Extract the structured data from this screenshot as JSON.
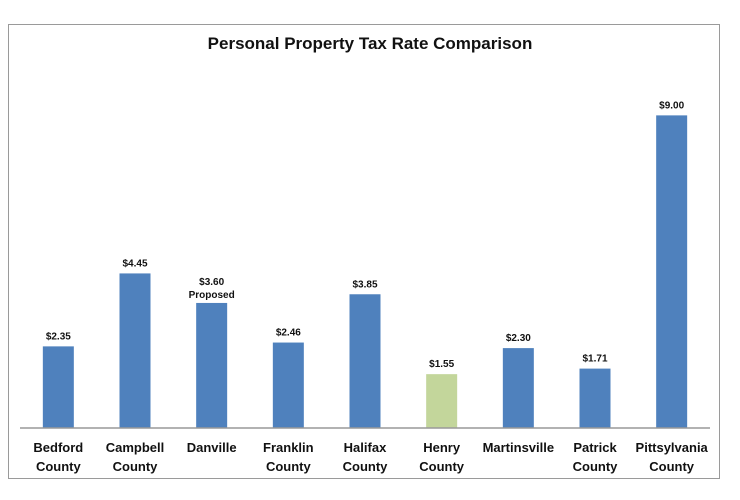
{
  "chart_data": {
    "type": "bar",
    "title": "Personal Property Tax Rate Comparison",
    "categories": [
      [
        "Bedford",
        "County"
      ],
      [
        "Campbell",
        "County"
      ],
      [
        "Danville"
      ],
      [
        "Franklin",
        "County"
      ],
      [
        "Halifax",
        "County"
      ],
      [
        "Henry",
        "County"
      ],
      [
        "Martinsville"
      ],
      [
        "Patrick",
        "County"
      ],
      [
        "Pittsylvania",
        "County"
      ]
    ],
    "values": [
      2.35,
      4.45,
      3.6,
      2.46,
      3.85,
      1.55,
      2.3,
      1.71,
      9.0
    ],
    "data_labels": [
      "$2.35",
      "$4.45",
      "$3.60",
      "$2.46",
      "$3.85",
      "$1.55",
      "$2.30",
      "$1.71",
      "$9.00"
    ],
    "annotations": [
      {
        "category_index": 2,
        "text": "Proposed"
      }
    ],
    "colors": [
      "#4f81bd",
      "#4f81bd",
      "#4f81bd",
      "#4f81bd",
      "#4f81bd",
      "#c3d69b",
      "#4f81bd",
      "#4f81bd",
      "#4f81bd"
    ],
    "ylim": [
      0,
      9.5
    ],
    "grid": false,
    "legend": "none",
    "xlabel": "",
    "ylabel": ""
  }
}
